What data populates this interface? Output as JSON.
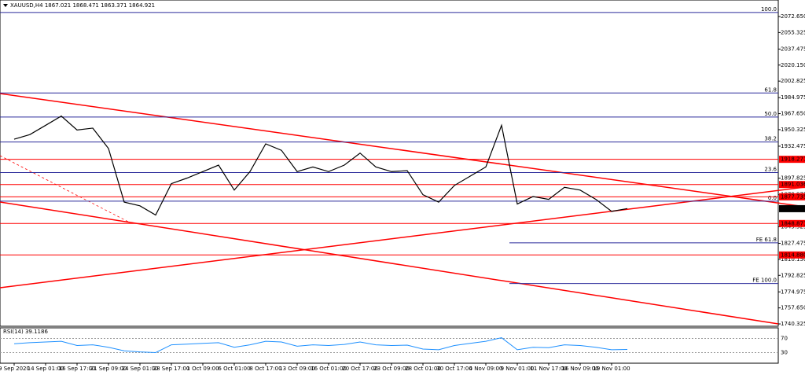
{
  "chart_data": {
    "type": "line",
    "title": "XAUUSD,H4  1867.021 1868.471 1863.371 1864.921",
    "categories": [
      "9 Sep 2020",
      null,
      "14 Sep 01:00",
      null,
      "16 Sep 17:00",
      null,
      "21 Sep 09:00",
      null,
      "24 Sep 01:00",
      null,
      "28 Sep 17:00",
      null,
      "1 Oct 09:00",
      null,
      "6 Oct 01:00",
      null,
      "8 Oct 17:00",
      null,
      "13 Oct 09:00",
      null,
      "16 Oct 01:00",
      null,
      "20 Oct 17:00",
      null,
      "23 Oct 09:00",
      null,
      "28 Oct 01:00",
      null,
      "30 Oct 17:00",
      null,
      "4 Nov 09:00",
      null,
      "9 Nov 01:00",
      null,
      "11 Nov 17:00",
      null,
      "16 Nov 09:00",
      null,
      "19 Nov 01:00",
      null
    ],
    "series": [
      {
        "name": "XAUUSD",
        "color": "#000000",
        "values": [
          1940,
          1945,
          1955,
          1965,
          1950,
          1952,
          1930,
          1872,
          1868,
          1858,
          1892,
          1898,
          1905,
          1912,
          1885,
          1905,
          1935,
          1928,
          1905,
          1910,
          1905,
          1912,
          1925,
          1910,
          1905,
          1906,
          1880,
          1872,
          1890,
          1900,
          1910,
          1955,
          1870,
          1878,
          1875,
          1888,
          1885,
          1875,
          1862,
          1865
        ]
      }
    ],
    "ylim": [
      1737.8,
      2090.5
    ],
    "yticks": [
      {
        "value": 2072.65,
        "label": "2072.650"
      },
      {
        "value": 2055.325,
        "label": "2055.325"
      },
      {
        "value": 2037.475,
        "label": "2037.475"
      },
      {
        "value": 2020.15,
        "label": "2020.150"
      },
      {
        "value": 2002.825,
        "label": "2002.825"
      },
      {
        "value": 1984.975,
        "label": "1984.975"
      },
      {
        "value": 1967.65,
        "label": "1967.650"
      },
      {
        "value": 1950.325,
        "label": "1950.325"
      },
      {
        "value": 1932.475,
        "label": "1932.475"
      },
      {
        "value": 1897.825,
        "label": "1897.825"
      },
      {
        "value": 1879.975,
        "label": "1879.975"
      },
      {
        "value": 1845.325,
        "label": "1845.325"
      },
      {
        "value": 1827.475,
        "label": "1827.475"
      },
      {
        "value": 1810.15,
        "label": "1810.150"
      },
      {
        "value": 1792.825,
        "label": "1792.825"
      },
      {
        "value": 1774.975,
        "label": "1774.975"
      },
      {
        "value": 1757.65,
        "label": "1757.650"
      },
      {
        "value": 1740.325,
        "label": "1740.325"
      }
    ],
    "levels": [
      {
        "value": 1918.271,
        "label": "1918.271",
        "color": "#ff0000"
      },
      {
        "value": 1891.036,
        "label": "1891.036",
        "color": "#ff0000"
      },
      {
        "value": 1877.735,
        "label": "1877.735",
        "color": "#ff0000"
      },
      {
        "value": 1864.921,
        "label": "1864.921",
        "color": "#000000"
      },
      {
        "value": 1848.871,
        "label": "1848.871",
        "color": "#ff0000"
      },
      {
        "value": 1814.88,
        "label": "1814.880",
        "color": "#ff0000"
      }
    ],
    "fib_levels": [
      {
        "value": 2077,
        "label": "100.0"
      },
      {
        "value": 1990,
        "label": "61.8"
      },
      {
        "value": 1964,
        "label": "50.0"
      },
      {
        "value": 1937,
        "label": "38.2"
      },
      {
        "value": 1904,
        "label": "23.6"
      },
      {
        "value": 1873,
        "label": "0.0"
      }
    ],
    "fe_levels": [
      {
        "value": 1828,
        "label": "FE 61.8"
      },
      {
        "value": 1784,
        "label": "FE 100.0"
      }
    ],
    "rsi": {
      "title": "RSI(14) 39.1186",
      "color": "#1e90ff",
      "ylim": [
        0,
        100
      ],
      "yticks": [
        70,
        30
      ],
      "values": [
        55,
        58,
        60,
        62,
        50,
        52,
        45,
        35,
        32,
        30,
        52,
        54,
        56,
        58,
        45,
        52,
        62,
        60,
        48,
        52,
        50,
        53,
        60,
        52,
        50,
        51,
        40,
        38,
        50,
        56,
        62,
        72,
        38,
        45,
        44,
        52,
        50,
        45,
        38,
        39
      ]
    }
  }
}
